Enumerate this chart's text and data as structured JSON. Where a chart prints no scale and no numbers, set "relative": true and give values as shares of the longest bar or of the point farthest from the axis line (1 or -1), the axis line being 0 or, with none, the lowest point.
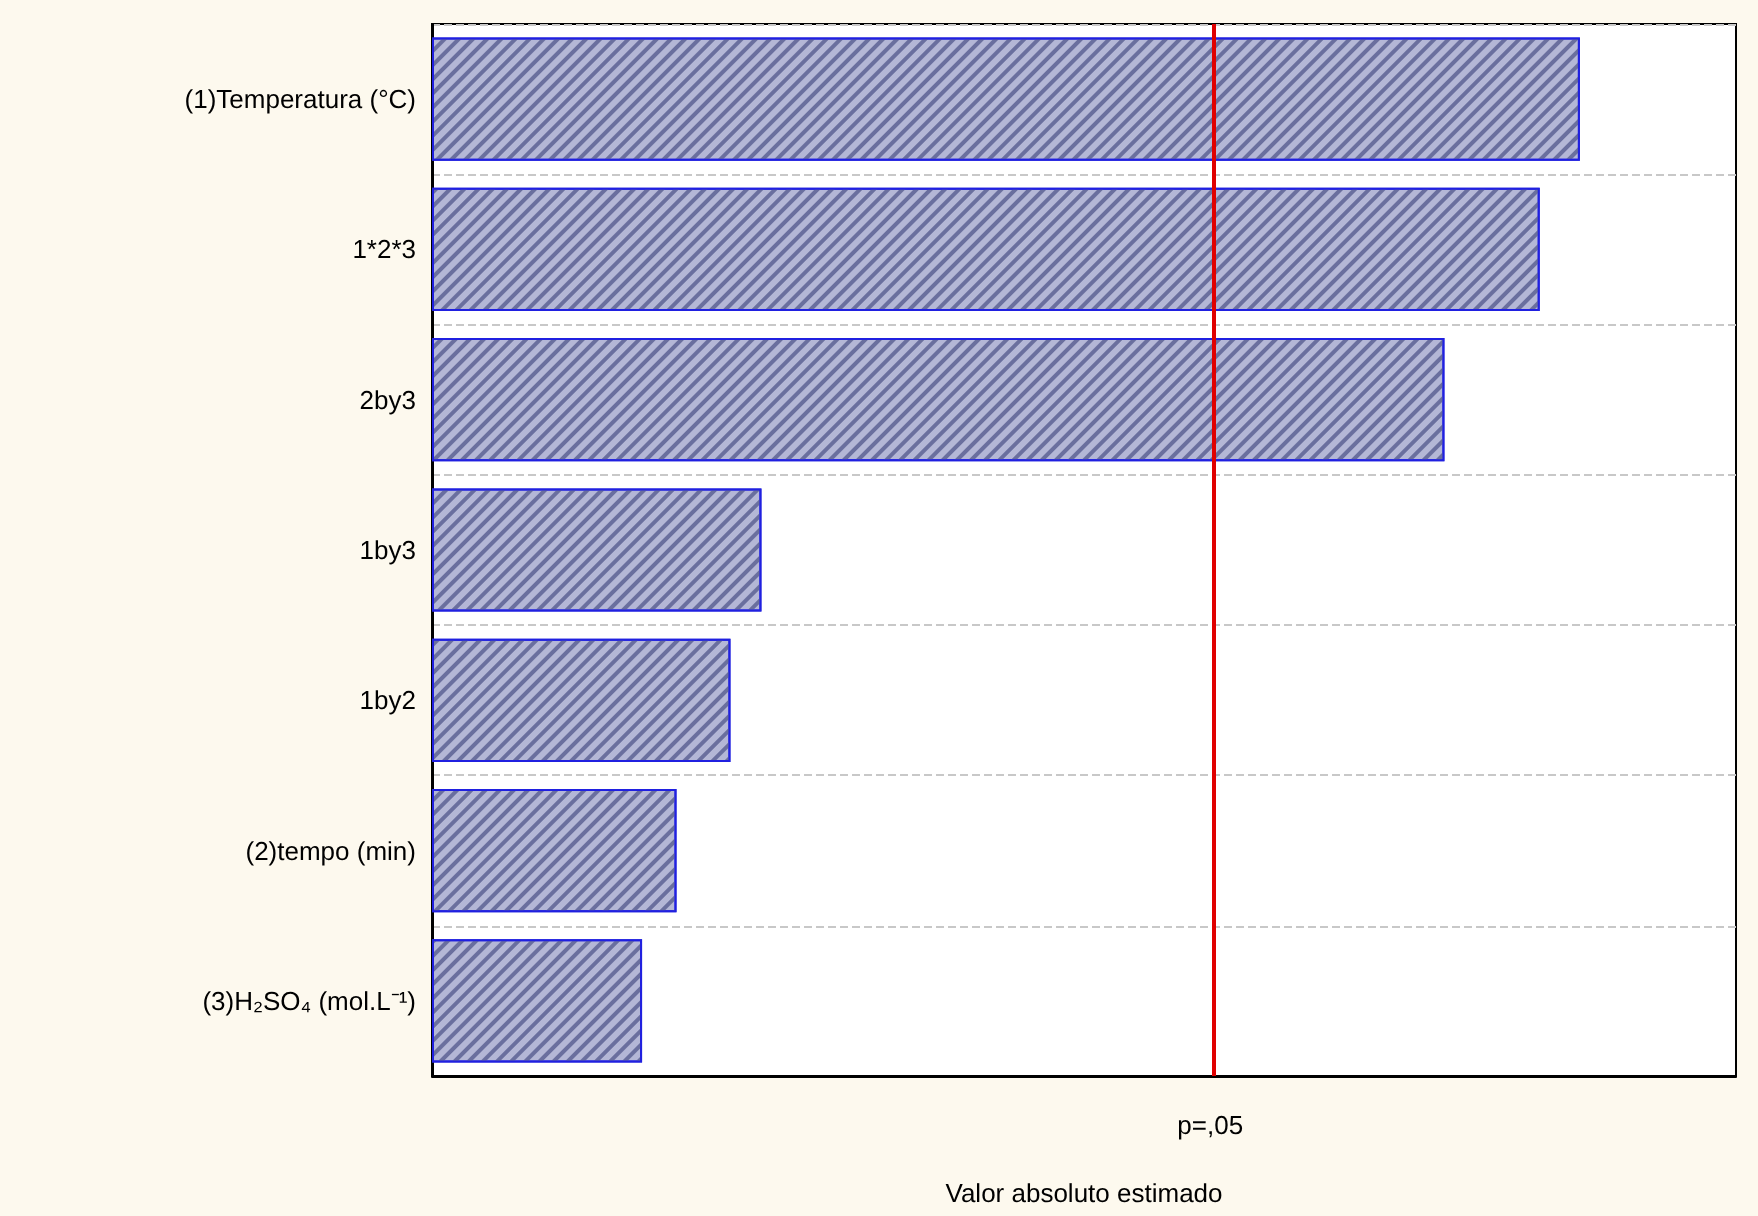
{
  "chart_data": {
    "type": "bar",
    "orientation": "horizontal",
    "relative": true,
    "xlabel": "Valor absoluto estimado",
    "categories": [
      "(1)Temperatura (°C)",
      "1*2*3",
      "2by3",
      "1by3",
      "1by2",
      "(2)tempo (min)",
      "(3)H₂SO₄ (mol.L⁻¹)"
    ],
    "values": [
      1,
      0.965,
      0.882,
      0.287,
      0.26,
      0.213,
      0.183
    ],
    "color": "#b4b7d6",
    "ref_lines": [
      {
        "axis": "x",
        "value": 0.678,
        "label": "p=,05",
        "color": "#e00000"
      }
    ],
    "grid": "y"
  }
}
